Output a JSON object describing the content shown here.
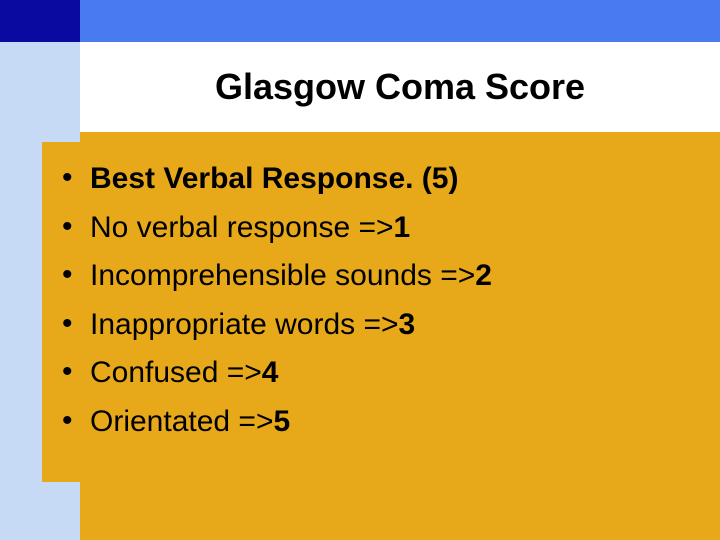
{
  "colors": {
    "slide_bg": "#e7a919",
    "top_left": "#0a0aa0",
    "top_right": "#4a7af0",
    "left_stripe": "#c7daf5",
    "title_bg": "#ffffff",
    "text": "#000000"
  },
  "title": "Glasgow Coma Score",
  "title_fontsize": 36,
  "bullet_fontsize": 30,
  "bullets": [
    {
      "text": "Best Verbal Response. (5)",
      "bold": true
    },
    {
      "text": "No verbal response =>1",
      "bold_tail": "1"
    },
    {
      "text": "Incomprehensible sounds =>2",
      "bold_tail": "2"
    },
    {
      "text": "Inappropriate words =>3",
      "bold_tail": "3"
    },
    {
      "text": "Confused =>4",
      "bold_tail": "4"
    },
    {
      "text": "Orientated =>5",
      "bold_tail": "5"
    }
  ]
}
